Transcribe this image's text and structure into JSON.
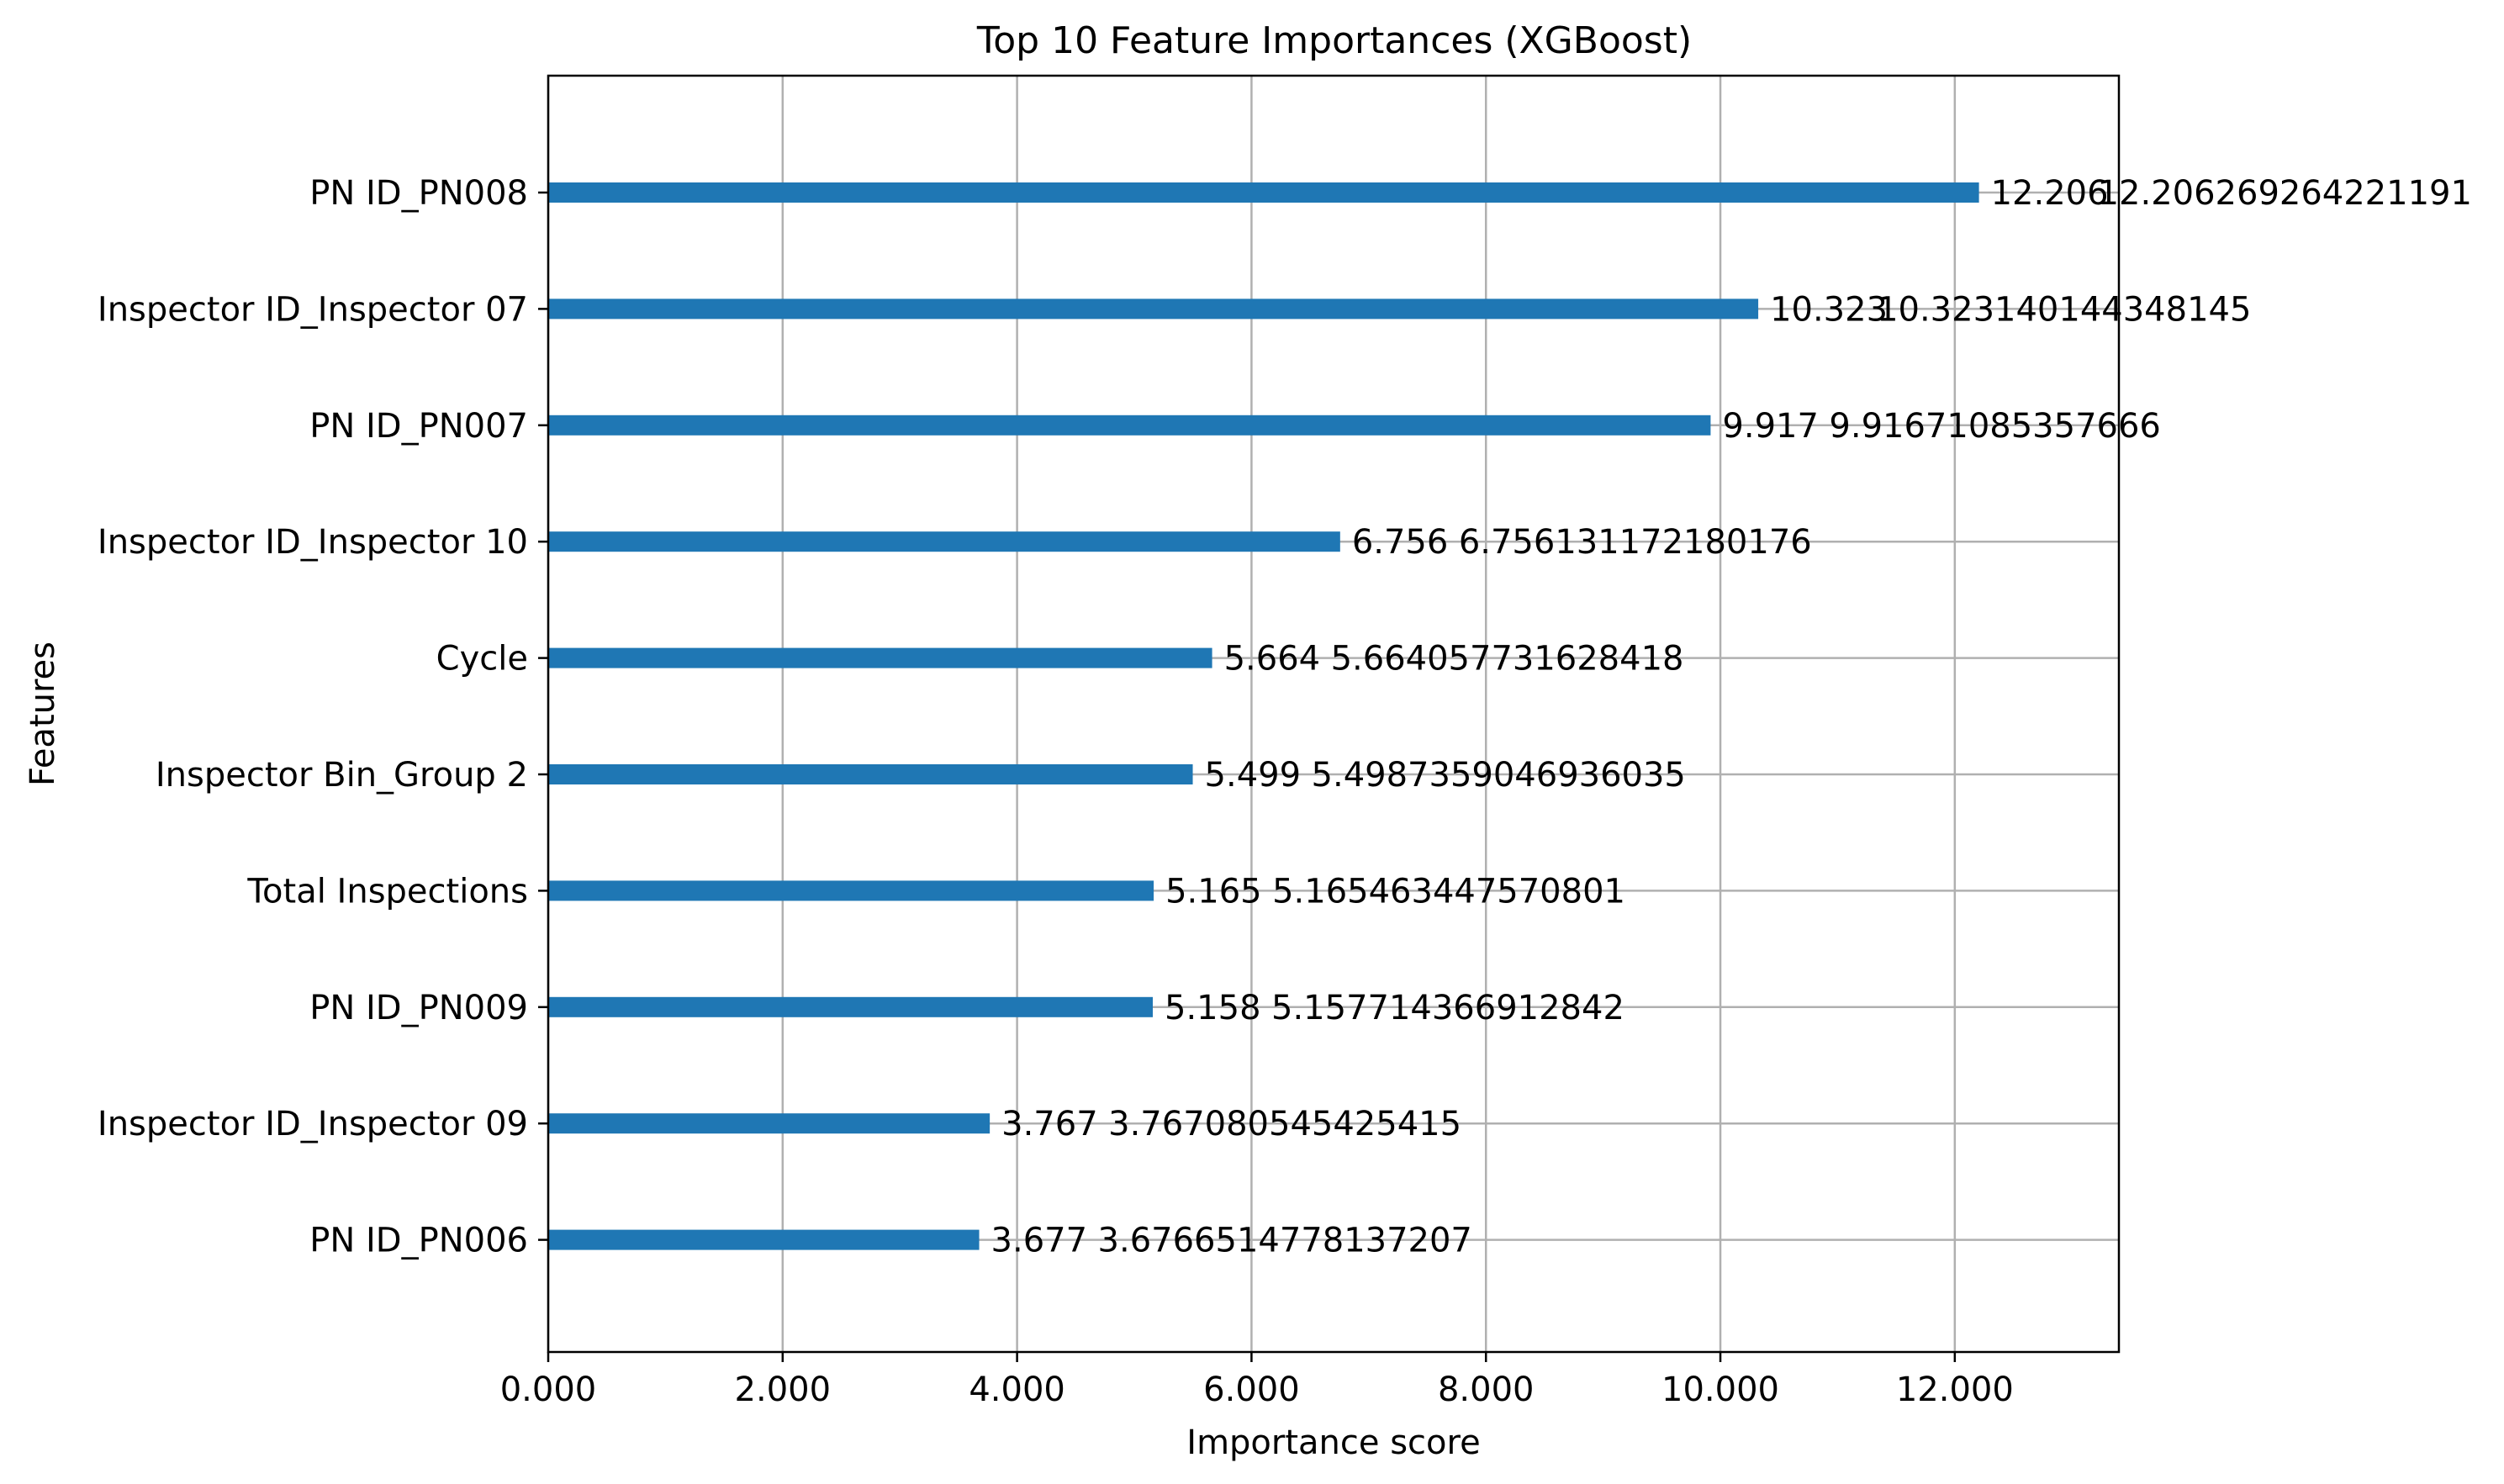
{
  "chart_data": {
    "type": "bar",
    "orientation": "horizontal",
    "title": "Top 10 Feature Importances (XGBoost)",
    "xlabel": "Importance score",
    "ylabel": "Features",
    "xlim": [
      0,
      13.4
    ],
    "x_ticks": [
      "0.000",
      "2.000",
      "4.000",
      "6.000",
      "8.000",
      "10.000",
      "12.000"
    ],
    "x_tick_values": [
      0,
      2,
      4,
      6,
      8,
      10,
      12
    ],
    "grid": true,
    "bar_color": "#1f77b4",
    "categories": [
      "PN ID_PN008",
      "Inspector ID_Inspector 07",
      "PN ID_PN007",
      "Inspector ID_Inspector 10",
      "Cycle",
      "Inspector Bin_Group 2",
      "Total Inspections",
      "PN ID_PN009",
      "Inspector ID_Inspector 09",
      "PN ID_PN006"
    ],
    "values": [
      12.206269264221191,
      10.323140144348145,
      9.91671085357666,
      6.756131172180176,
      5.664057731628418,
      5.4987359046936035,
      5.165463447570801,
      5.157714366912842,
      3.767080545425415,
      3.6766514778137207
    ],
    "value_labels_short": [
      "12.206",
      "10.323",
      "9.917",
      "6.756",
      "5.664",
      "5.499",
      "5.165",
      "5.158",
      "3.767",
      "3.677"
    ],
    "value_labels_full": [
      "12.206269264221191",
      "10.323140144348145",
      "9.91671085357666",
      "6.756131172180176",
      "5.664057731628418",
      "5.4987359046936035",
      "5.165463447570801",
      "5.157714366912842",
      "3.767080545425415",
      "3.6766514778137207"
    ]
  }
}
